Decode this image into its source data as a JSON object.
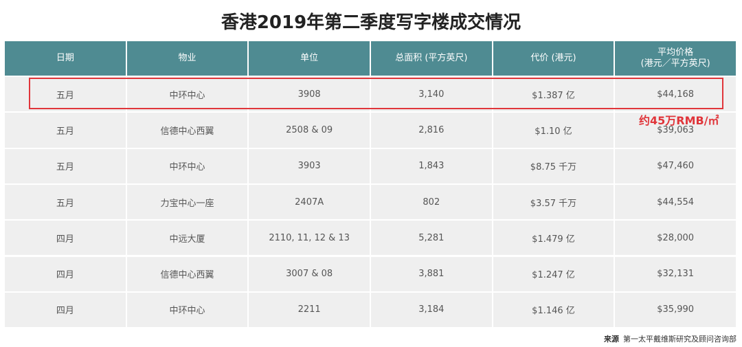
{
  "title": "香港2019年第二季度写字楼成交情况",
  "table": {
    "headers": [
      [
        "日期"
      ],
      [
        "物业"
      ],
      [
        "单位"
      ],
      [
        "总面积 (平方英尺)"
      ],
      [
        "代价 (港元)"
      ],
      [
        "平均价格",
        "(港元／平方英尺)"
      ]
    ],
    "rows": [
      [
        "五月",
        "中环中心",
        "3908",
        "3,140",
        "$1.387 亿",
        "$44,168"
      ],
      [
        "五月",
        "信德中心西翼",
        "2508 & 09",
        "2,816",
        "$1.10 亿",
        "$39,063"
      ],
      [
        "五月",
        "中环中心",
        "3903",
        "1,843",
        "$8.75 千万",
        "$47,460"
      ],
      [
        "五月",
        "力宝中心一座",
        "2407A",
        "802",
        "$3.57 千万",
        "$44,554"
      ],
      [
        "四月",
        "中远大厦",
        "2110, 11, 12 & 13",
        "5,281",
        "$1.479 亿",
        "$28,000"
      ],
      [
        "四月",
        "信德中心西翼",
        "3007 & 08",
        "3,881",
        "$1.247 亿",
        "$32,131"
      ],
      [
        "四月",
        "中环中心",
        "2211",
        "3,184",
        "$1.146 亿",
        "$35,990"
      ]
    ]
  },
  "annotation": "约45万RMB/㎡",
  "source": {
    "label": "来源",
    "text": "第一太平戴维斯研究及顾问咨询部"
  }
}
